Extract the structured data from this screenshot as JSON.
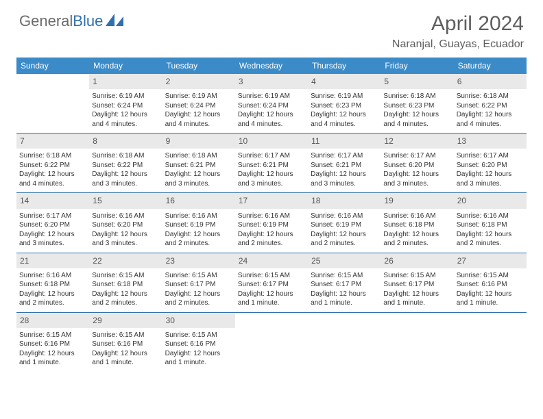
{
  "brand": {
    "part1": "General",
    "part2": "Blue"
  },
  "title": "April 2024",
  "location": "Naranjal, Guayas, Ecuador",
  "colors": {
    "header_bg": "#3b8bc9",
    "rule": "#2f6fae",
    "daynum_bg": "#e9e9e9",
    "text": "#333333",
    "muted": "#5e5e5e"
  },
  "dow": [
    "Sunday",
    "Monday",
    "Tuesday",
    "Wednesday",
    "Thursday",
    "Friday",
    "Saturday"
  ],
  "weeks": [
    [
      {
        "n": "",
        "empty": true
      },
      {
        "n": "1",
        "sunrise": "Sunrise: 6:19 AM",
        "sunset": "Sunset: 6:24 PM",
        "d1": "Daylight: 12 hours",
        "d2": "and 4 minutes."
      },
      {
        "n": "2",
        "sunrise": "Sunrise: 6:19 AM",
        "sunset": "Sunset: 6:24 PM",
        "d1": "Daylight: 12 hours",
        "d2": "and 4 minutes."
      },
      {
        "n": "3",
        "sunrise": "Sunrise: 6:19 AM",
        "sunset": "Sunset: 6:24 PM",
        "d1": "Daylight: 12 hours",
        "d2": "and 4 minutes."
      },
      {
        "n": "4",
        "sunrise": "Sunrise: 6:19 AM",
        "sunset": "Sunset: 6:23 PM",
        "d1": "Daylight: 12 hours",
        "d2": "and 4 minutes."
      },
      {
        "n": "5",
        "sunrise": "Sunrise: 6:18 AM",
        "sunset": "Sunset: 6:23 PM",
        "d1": "Daylight: 12 hours",
        "d2": "and 4 minutes."
      },
      {
        "n": "6",
        "sunrise": "Sunrise: 6:18 AM",
        "sunset": "Sunset: 6:22 PM",
        "d1": "Daylight: 12 hours",
        "d2": "and 4 minutes."
      }
    ],
    [
      {
        "n": "7",
        "sunrise": "Sunrise: 6:18 AM",
        "sunset": "Sunset: 6:22 PM",
        "d1": "Daylight: 12 hours",
        "d2": "and 4 minutes."
      },
      {
        "n": "8",
        "sunrise": "Sunrise: 6:18 AM",
        "sunset": "Sunset: 6:22 PM",
        "d1": "Daylight: 12 hours",
        "d2": "and 3 minutes."
      },
      {
        "n": "9",
        "sunrise": "Sunrise: 6:18 AM",
        "sunset": "Sunset: 6:21 PM",
        "d1": "Daylight: 12 hours",
        "d2": "and 3 minutes."
      },
      {
        "n": "10",
        "sunrise": "Sunrise: 6:17 AM",
        "sunset": "Sunset: 6:21 PM",
        "d1": "Daylight: 12 hours",
        "d2": "and 3 minutes."
      },
      {
        "n": "11",
        "sunrise": "Sunrise: 6:17 AM",
        "sunset": "Sunset: 6:21 PM",
        "d1": "Daylight: 12 hours",
        "d2": "and 3 minutes."
      },
      {
        "n": "12",
        "sunrise": "Sunrise: 6:17 AM",
        "sunset": "Sunset: 6:20 PM",
        "d1": "Daylight: 12 hours",
        "d2": "and 3 minutes."
      },
      {
        "n": "13",
        "sunrise": "Sunrise: 6:17 AM",
        "sunset": "Sunset: 6:20 PM",
        "d1": "Daylight: 12 hours",
        "d2": "and 3 minutes."
      }
    ],
    [
      {
        "n": "14",
        "sunrise": "Sunrise: 6:17 AM",
        "sunset": "Sunset: 6:20 PM",
        "d1": "Daylight: 12 hours",
        "d2": "and 3 minutes."
      },
      {
        "n": "15",
        "sunrise": "Sunrise: 6:16 AM",
        "sunset": "Sunset: 6:20 PM",
        "d1": "Daylight: 12 hours",
        "d2": "and 3 minutes."
      },
      {
        "n": "16",
        "sunrise": "Sunrise: 6:16 AM",
        "sunset": "Sunset: 6:19 PM",
        "d1": "Daylight: 12 hours",
        "d2": "and 2 minutes."
      },
      {
        "n": "17",
        "sunrise": "Sunrise: 6:16 AM",
        "sunset": "Sunset: 6:19 PM",
        "d1": "Daylight: 12 hours",
        "d2": "and 2 minutes."
      },
      {
        "n": "18",
        "sunrise": "Sunrise: 6:16 AM",
        "sunset": "Sunset: 6:19 PM",
        "d1": "Daylight: 12 hours",
        "d2": "and 2 minutes."
      },
      {
        "n": "19",
        "sunrise": "Sunrise: 6:16 AM",
        "sunset": "Sunset: 6:18 PM",
        "d1": "Daylight: 12 hours",
        "d2": "and 2 minutes."
      },
      {
        "n": "20",
        "sunrise": "Sunrise: 6:16 AM",
        "sunset": "Sunset: 6:18 PM",
        "d1": "Daylight: 12 hours",
        "d2": "and 2 minutes."
      }
    ],
    [
      {
        "n": "21",
        "sunrise": "Sunrise: 6:16 AM",
        "sunset": "Sunset: 6:18 PM",
        "d1": "Daylight: 12 hours",
        "d2": "and 2 minutes."
      },
      {
        "n": "22",
        "sunrise": "Sunrise: 6:15 AM",
        "sunset": "Sunset: 6:18 PM",
        "d1": "Daylight: 12 hours",
        "d2": "and 2 minutes."
      },
      {
        "n": "23",
        "sunrise": "Sunrise: 6:15 AM",
        "sunset": "Sunset: 6:17 PM",
        "d1": "Daylight: 12 hours",
        "d2": "and 2 minutes."
      },
      {
        "n": "24",
        "sunrise": "Sunrise: 6:15 AM",
        "sunset": "Sunset: 6:17 PM",
        "d1": "Daylight: 12 hours",
        "d2": "and 1 minute."
      },
      {
        "n": "25",
        "sunrise": "Sunrise: 6:15 AM",
        "sunset": "Sunset: 6:17 PM",
        "d1": "Daylight: 12 hours",
        "d2": "and 1 minute."
      },
      {
        "n": "26",
        "sunrise": "Sunrise: 6:15 AM",
        "sunset": "Sunset: 6:17 PM",
        "d1": "Daylight: 12 hours",
        "d2": "and 1 minute."
      },
      {
        "n": "27",
        "sunrise": "Sunrise: 6:15 AM",
        "sunset": "Sunset: 6:16 PM",
        "d1": "Daylight: 12 hours",
        "d2": "and 1 minute."
      }
    ],
    [
      {
        "n": "28",
        "sunrise": "Sunrise: 6:15 AM",
        "sunset": "Sunset: 6:16 PM",
        "d1": "Daylight: 12 hours",
        "d2": "and 1 minute."
      },
      {
        "n": "29",
        "sunrise": "Sunrise: 6:15 AM",
        "sunset": "Sunset: 6:16 PM",
        "d1": "Daylight: 12 hours",
        "d2": "and 1 minute."
      },
      {
        "n": "30",
        "sunrise": "Sunrise: 6:15 AM",
        "sunset": "Sunset: 6:16 PM",
        "d1": "Daylight: 12 hours",
        "d2": "and 1 minute."
      },
      {
        "n": "",
        "empty": true
      },
      {
        "n": "",
        "empty": true
      },
      {
        "n": "",
        "empty": true
      },
      {
        "n": "",
        "empty": true
      }
    ]
  ]
}
